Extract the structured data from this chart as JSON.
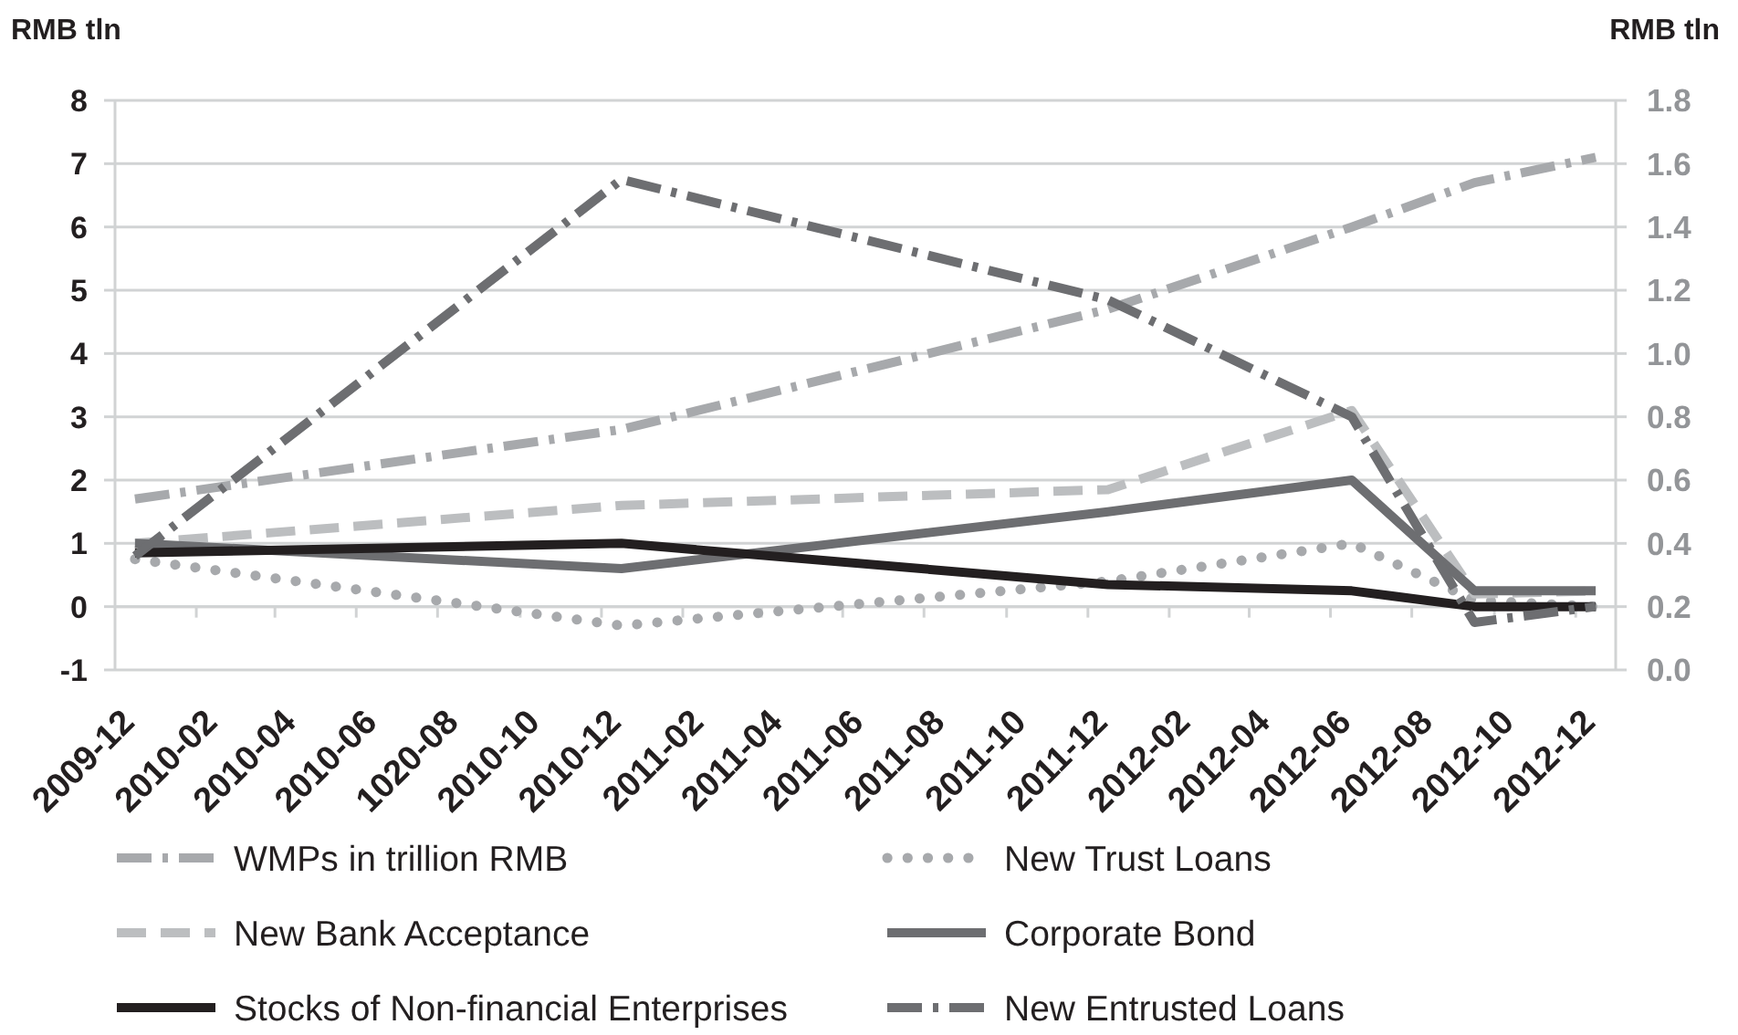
{
  "chart_data": {
    "type": "line",
    "ylabel": "RMB tln",
    "y2label": "RMB tln",
    "x": [
      "2009-12",
      "2010-12",
      "2011-12",
      "2012-06",
      "2012-09",
      "2012-12"
    ],
    "xlim": [
      "2009-11-16",
      "2012-12-16"
    ],
    "xticks": [
      "2009-12",
      {
        "value": "2010-01-16",
        "label": null
      },
      "2010-02",
      {
        "value": "2010-03-16",
        "label": null
      },
      "2010-04",
      {
        "value": "2010-05-16",
        "label": null
      },
      "2010-06",
      {
        "value": "2010-07-16",
        "label": null
      },
      {
        "value": "2010-08",
        "label": "1020-08"
      },
      {
        "value": "2010-09-16",
        "label": null
      },
      "2010-10",
      {
        "value": "2010-11-16",
        "label": null
      },
      "2010-12",
      {
        "value": "2011-01-16",
        "label": null
      },
      "2011-02",
      {
        "value": "2011-03-16",
        "label": null
      },
      "2011-04",
      {
        "value": "2011-05-16",
        "label": null
      },
      "2011-06",
      {
        "value": "2011-07-16",
        "label": null
      },
      "2011-08",
      {
        "value": "2011-09-16",
        "label": null
      },
      "2011-10",
      {
        "value": "2011-11-16",
        "label": null
      },
      "2011-12",
      {
        "value": "2012-01-16",
        "label": null
      },
      "2012-02",
      {
        "value": "2012-03-16",
        "label": null
      },
      "2012-04",
      {
        "value": "2012-05-16",
        "label": null
      },
      "2012-06",
      {
        "value": "2012-07-16",
        "label": null
      },
      "2012-08",
      {
        "value": "2012-09-16",
        "label": null
      },
      "2012-10",
      {
        "value": "2012-11-16",
        "label": null
      },
      "2012-12"
    ],
    "ylim": [
      -1,
      8
    ],
    "yticks": [
      -1,
      0,
      1,
      2,
      3,
      4,
      5,
      6,
      7,
      8
    ],
    "y2lim": [
      0,
      1.8
    ],
    "y2ticks": [
      {
        "value": 0,
        "label": "0.0"
      },
      0.2,
      0.4,
      0.6,
      0.8,
      {
        "value": 1,
        "label": "1.0"
      },
      1.2,
      1.4,
      1.6,
      1.8
    ],
    "grid": "y",
    "legend": "bottom",
    "series": [
      {
        "name": "WMPs in trillion RMB",
        "color": "#a7a9ac",
        "line_style": "dashdot",
        "values": [
          1.7,
          2.8,
          4.7,
          6.0,
          6.7,
          7.1
        ]
      },
      {
        "name": "New Trust Loans",
        "color": "#a7a9ac",
        "line_style": "dotted",
        "axis": "y2",
        "values": [
          0.35,
          0.14,
          0.28,
          0.4,
          0.22,
          0.2
        ]
      },
      {
        "name": "New Bank Acceptance",
        "color": "#bcbec0",
        "line_style": "dashed",
        "axis": "y2",
        "values": [
          0.4,
          0.52,
          0.57,
          0.82,
          0.24,
          0.25
        ]
      },
      {
        "name": "Corporate Bond",
        "color": "#6d6e71",
        "line_style": "solid",
        "axis": "y2",
        "values": [
          0.4,
          0.32,
          0.5,
          0.6,
          0.25,
          0.25
        ]
      },
      {
        "name": "Stocks of Non-financial Enterprises",
        "color": "#231f20",
        "line_style": "solid",
        "axis": "y2",
        "values": [
          0.37,
          0.4,
          0.27,
          0.25,
          0.2,
          0.2
        ]
      },
      {
        "name": "New Entrusted Loans",
        "color": "#6d6e71",
        "line_style": "dashdot",
        "axis": "y2",
        "values": [
          0.36,
          1.55,
          1.17,
          0.8,
          0.15,
          0.2
        ]
      }
    ]
  }
}
